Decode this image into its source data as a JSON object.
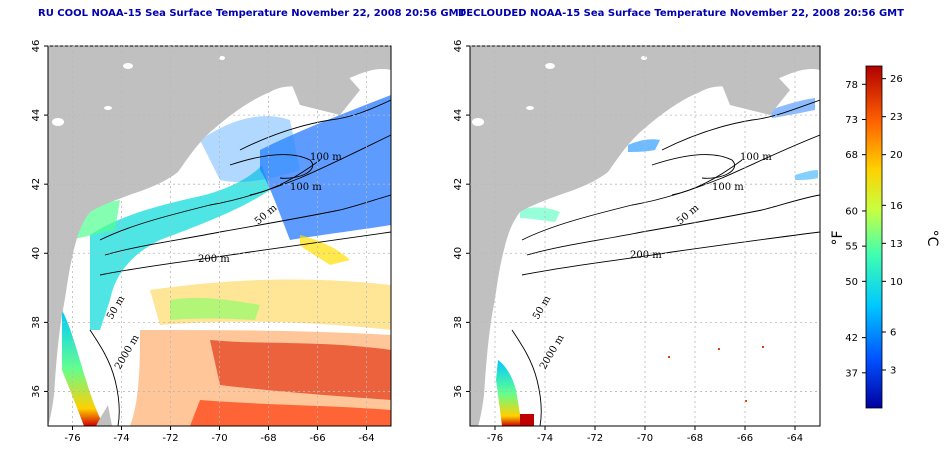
{
  "panels": [
    {
      "id": "left",
      "title": "RU COOL NOAA-15 Sea Surface Temperature November 22, 2008 20:56 GMT",
      "contour_labels": [
        "100 m",
        "100 m",
        "50 m",
        "200 m",
        "50 m",
        "2000 m"
      ]
    },
    {
      "id": "right",
      "title": "DECLOUDED NOAA-15 Sea Surface Temperature November 22, 2008 20:56 GMT",
      "contour_labels": [
        "100 m",
        "100 m",
        "50 m",
        "200 m",
        "50 m",
        "2000 m"
      ]
    }
  ],
  "x_ticks": [
    "-76",
    "-74",
    "-72",
    "-70",
    "-68",
    "-66",
    "-64"
  ],
  "y_ticks": [
    "36",
    "38",
    "40",
    "42",
    "44",
    "46"
  ],
  "lon_range": [
    -77,
    -63
  ],
  "lat_range": [
    35,
    46
  ],
  "colorbar": {
    "fahrenheit_ticks": [
      "78",
      "73",
      "68",
      "60",
      "55",
      "50",
      "42",
      "37"
    ],
    "celsius_ticks": [
      "26",
      "23",
      "20",
      "16",
      "13",
      "10",
      "6",
      "3"
    ],
    "fahrenheit_unit": "°F",
    "celsius_unit": "°C",
    "range_c": [
      0,
      27
    ],
    "colors": [
      "#0000a0",
      "#0050ff",
      "#00c8ff",
      "#40ffb0",
      "#c8ff40",
      "#ffd000",
      "#ff6000",
      "#b00000"
    ]
  },
  "colors": {
    "land": "#c0c0c0",
    "title": "#0000b0",
    "grid": "#b8b8b8"
  }
}
